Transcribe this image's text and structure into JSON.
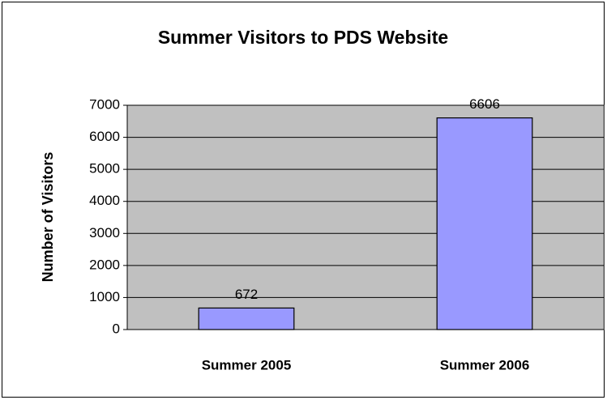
{
  "chart_data": {
    "type": "bar",
    "title": "Summer Visitors to PDS Website",
    "y_label": "Number of Visitors",
    "categories": [
      "Summer 2005",
      "Summer 2006"
    ],
    "values": [
      672,
      6606
    ],
    "color": "#9999ff",
    "plot_background": "#c0c0c0",
    "ylim": [
      0,
      7000
    ],
    "yticks": [
      0,
      1000,
      2000,
      3000,
      4000,
      5000,
      6000,
      7000
    ],
    "grid": true
  }
}
